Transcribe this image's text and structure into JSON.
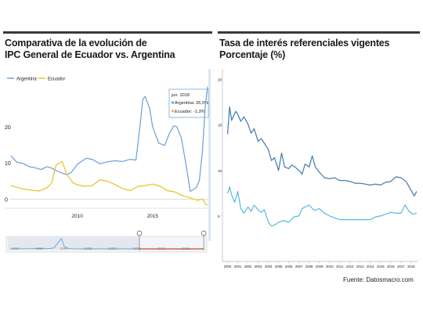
{
  "chart_data": [
    {
      "type": "line",
      "title": "Comparativa de la evolución de IPC General de Ecuador vs. Argentina",
      "title_lines": [
        "Comparativa de la evolución de",
        "IPC General de Ecuador vs. Argentina"
      ],
      "ylabel": "",
      "ylim": [
        -2,
        32
      ],
      "yticks": [
        0,
        10,
        20
      ],
      "ytick_labels": [
        "0",
        "10",
        "20"
      ],
      "xlim": [
        2005.5,
        2018.7
      ],
      "xticks": [
        2010,
        2015
      ],
      "xtick_labels": [
        "2010",
        "2015"
      ],
      "legend_position": "top-left",
      "grid": false,
      "colors": {
        "argentina": "#6aa0d4",
        "ecuador": "#e8c21e",
        "tooltip_border": "#7aa6cf"
      },
      "tooltip": {
        "date": "jun. 2018",
        "rows": [
          {
            "series": "argentina",
            "label": "Argentina: 26,0%"
          },
          {
            "series": "ecuador",
            "label": "Ecuador: -1,3%"
          }
        ]
      },
      "series": [
        {
          "key": "argentina",
          "name": "Argentina",
          "x": [
            2005.6,
            2006.0,
            2006.4,
            2006.8,
            2007.2,
            2007.6,
            2008.0,
            2008.3,
            2008.6,
            2009.0,
            2009.3,
            2009.6,
            2010.0,
            2010.3,
            2010.6,
            2011.0,
            2011.5,
            2012.0,
            2012.5,
            2013.0,
            2013.5,
            2013.9,
            2014.2,
            2014.35,
            2014.5,
            2014.8,
            2015.0,
            2015.4,
            2015.8,
            2016.1,
            2016.4,
            2016.6,
            2016.9,
            2017.2,
            2017.5,
            2017.9,
            2018.1,
            2018.3,
            2018.5,
            2018.65
          ],
          "y": [
            12.0,
            10.2,
            9.9,
            9.0,
            8.7,
            8.2,
            9.0,
            8.6,
            7.9,
            7.2,
            6.8,
            7.4,
            9.6,
            10.5,
            11.3,
            11.0,
            9.8,
            10.3,
            10.6,
            10.4,
            11.0,
            10.8,
            21.5,
            27.5,
            28.3,
            25.0,
            20.0,
            15.5,
            14.8,
            18.0,
            20.2,
            20.0,
            17.0,
            10.0,
            2.2,
            3.2,
            5.2,
            13.0,
            26.0,
            31.0
          ]
        },
        {
          "key": "ecuador",
          "name": "Ecuador",
          "x": [
            2005.6,
            2006.0,
            2006.5,
            2007.0,
            2007.5,
            2008.0,
            2008.3,
            2008.6,
            2009.0,
            2009.3,
            2009.7,
            2010.0,
            2010.5,
            2011.0,
            2011.5,
            2012.0,
            2012.5,
            2013.0,
            2013.5,
            2014.0,
            2014.5,
            2015.0,
            2015.5,
            2016.0,
            2016.5,
            2017.0,
            2017.5,
            2018.0,
            2018.3,
            2018.5,
            2018.65
          ],
          "y": [
            3.8,
            3.3,
            2.8,
            2.5,
            2.3,
            3.2,
            4.5,
            9.5,
            10.4,
            7.0,
            4.6,
            4.0,
            3.6,
            3.8,
            5.4,
            5.0,
            4.1,
            3.0,
            2.4,
            3.5,
            3.8,
            4.2,
            3.6,
            2.4,
            2.0,
            1.0,
            0.4,
            -0.3,
            0.1,
            -1.3,
            -1.6
          ]
        }
      ],
      "navigator": {
        "x_ticks": [
          1980,
          1985,
          1990,
          1995,
          2000,
          2005,
          2010,
          2015
        ],
        "x_tick_labels": [
          "1980",
          "1985",
          "1990",
          "1995",
          "2000",
          "2005",
          "2010",
          "2015"
        ],
        "xlim": [
          1978.5,
          2019
        ],
        "selected_range": [
          2005.5,
          2018.7
        ],
        "series": {
          "x": [
            1979,
            1983,
            1984,
            1985,
            1986,
            1987,
            1988,
            1989,
            1989.5,
            1990,
            1990.5,
            1991,
            1992,
            1995,
            2000,
            2005,
            2010,
            2015,
            2018
          ],
          "y": [
            20,
            35,
            60,
            120,
            40,
            120,
            300,
            2200,
            3000,
            900,
            300,
            90,
            25,
            3,
            0,
            10,
            10,
            25,
            30
          ]
        },
        "ylim": [
          0,
          3200
        ]
      }
    },
    {
      "type": "line",
      "title": "Tasa de interés referenciales vigentes Porcentaje (%)",
      "title_lines": [
        "Tasa de interés referenciales vigentes",
        "Porcentaje (%)"
      ],
      "ylabel": "",
      "ylim": [
        0,
        21
      ],
      "yticks": [
        5,
        10,
        15,
        20
      ],
      "ytick_labels": [
        "5",
        "10",
        "15",
        "20"
      ],
      "xlim": [
        1999.5,
        2018.7
      ],
      "xticks": [
        2000,
        2001,
        2002,
        2003,
        2004,
        2005,
        2006,
        2007,
        2008,
        2009,
        2010,
        2011,
        2012,
        2013,
        2014,
        2015,
        2016,
        2017,
        2018
      ],
      "xtick_labels": [
        "2000",
        "2001",
        "2002",
        "2003",
        "2004",
        "2005",
        "2006",
        "2007",
        "2008",
        "2009",
        "2010",
        "2011",
        "2012",
        "2013",
        "2014",
        "2015",
        "2016",
        "2017",
        "2018"
      ],
      "grid": false,
      "colors": {
        "upper": "#3f78b0",
        "lower": "#59b8dc"
      },
      "series": [
        {
          "key": "upper",
          "x": [
            2000.0,
            2000.2,
            2000.4,
            2000.6,
            2000.8,
            2001.0,
            2001.3,
            2001.6,
            2002.0,
            2002.3,
            2002.6,
            2003.0,
            2003.3,
            2003.6,
            2004.0,
            2004.3,
            2004.6,
            2005.0,
            2005.3,
            2005.6,
            2006.0,
            2006.3,
            2006.6,
            2007.0,
            2007.3,
            2007.6,
            2008.0,
            2008.3,
            2008.6,
            2009.0,
            2009.5,
            2010.0,
            2010.5,
            2011.0,
            2011.5,
            2012.0,
            2012.5,
            2013.0,
            2013.5,
            2014.0,
            2014.5,
            2015.0,
            2015.5,
            2016.0,
            2016.5,
            2017.0,
            2017.5,
            2018.0,
            2018.3,
            2018.55
          ],
          "y": [
            14.0,
            17.0,
            15.5,
            16.0,
            16.5,
            16.2,
            15.4,
            15.9,
            15.1,
            14.1,
            14.6,
            13.2,
            13.5,
            13.0,
            12.3,
            11.1,
            11.4,
            10.0,
            11.9,
            10.4,
            10.2,
            10.6,
            10.4,
            10.0,
            9.6,
            10.7,
            10.4,
            11.6,
            10.4,
            9.8,
            9.2,
            9.1,
            9.2,
            8.9,
            8.9,
            8.8,
            8.6,
            8.6,
            8.5,
            8.4,
            8.5,
            8.4,
            8.7,
            8.8,
            9.3,
            9.2,
            8.8,
            7.8,
            7.2,
            7.7
          ]
        },
        {
          "key": "lower",
          "x": [
            2000.0,
            2000.2,
            2000.4,
            2000.7,
            2001.0,
            2001.3,
            2001.6,
            2002.0,
            2002.3,
            2002.6,
            2003.0,
            2003.3,
            2003.6,
            2004.0,
            2004.3,
            2004.6,
            2005.0,
            2005.5,
            2006.0,
            2006.5,
            2007.0,
            2007.3,
            2007.6,
            2008.0,
            2008.5,
            2009.0,
            2009.5,
            2010.0,
            2011.0,
            2012.0,
            2013.0,
            2014.0,
            2014.5,
            2015.0,
            2015.5,
            2016.0,
            2016.5,
            2017.0,
            2017.4,
            2017.8,
            2018.2,
            2018.55
          ],
          "y": [
            7.5,
            8.2,
            7.3,
            6.5,
            7.7,
            5.8,
            5.3,
            6.0,
            5.5,
            6.2,
            5.7,
            5.4,
            5.7,
            4.3,
            3.9,
            4.0,
            4.3,
            4.5,
            4.3,
            4.9,
            5.0,
            5.8,
            6.0,
            6.2,
            5.6,
            5.8,
            5.3,
            5.0,
            4.6,
            4.6,
            4.6,
            4.6,
            4.9,
            5.0,
            5.2,
            5.4,
            5.3,
            5.3,
            6.2,
            5.5,
            5.2,
            5.3
          ]
        }
      ],
      "source": "Fuente: Datosmacro.com"
    }
  ]
}
